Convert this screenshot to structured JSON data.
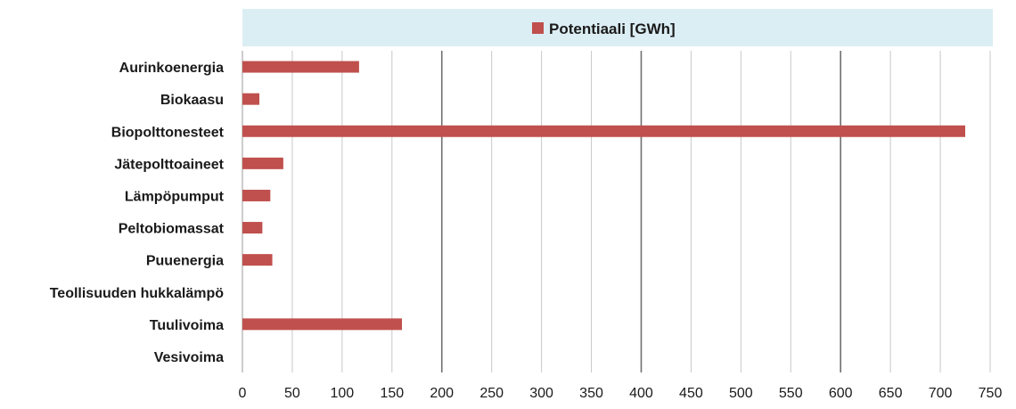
{
  "chart_data": {
    "type": "bar",
    "orientation": "horizontal",
    "categories": [
      "Aurinkoenergia",
      "Biokaasu",
      "Biopolttonesteet",
      "Jätepolttoaineet",
      "Lämpöpumput",
      "Peltobiomassat",
      "Puuenergia",
      "Teollisuuden hukkalämpö",
      "Tuulivoima",
      "Vesivoima"
    ],
    "series": [
      {
        "name": "Potentiaali [GWh]",
        "color": "#c0504d",
        "values": [
          117,
          17,
          725,
          41,
          28,
          20,
          30,
          0,
          160,
          0
        ]
      }
    ],
    "xlim": [
      0,
      750
    ],
    "xticks": [
      0,
      50,
      100,
      150,
      200,
      250,
      300,
      350,
      400,
      450,
      500,
      550,
      600,
      650,
      700,
      750
    ],
    "gridlines": "vertical",
    "legend_position": "top",
    "legend_background": "#dbeef4",
    "title": "",
    "xlabel": "",
    "ylabel": ""
  }
}
